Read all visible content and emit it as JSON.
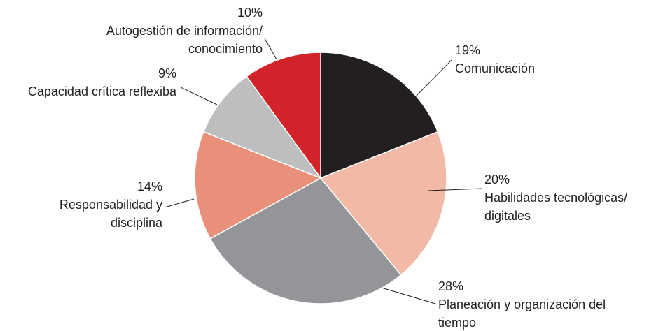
{
  "chart_data": {
    "type": "pie",
    "categories": [
      "Comunicación",
      "Habilidades tecnológicas/ digitales",
      "Planeación y organización del tiempo",
      "Responsabilidad y disciplina",
      "Capacidad crítica reflexiba",
      "Autogestión de información/ conocimiento"
    ],
    "values": [
      19,
      20,
      28,
      14,
      9,
      10
    ],
    "value_labels": [
      "19%",
      "20%",
      "28%",
      "14%",
      "9%",
      "10%"
    ],
    "colors": [
      "#231f20",
      "#f2b9a6",
      "#939598",
      "#e8907a",
      "#bcbec0",
      "#d2232a"
    ]
  }
}
